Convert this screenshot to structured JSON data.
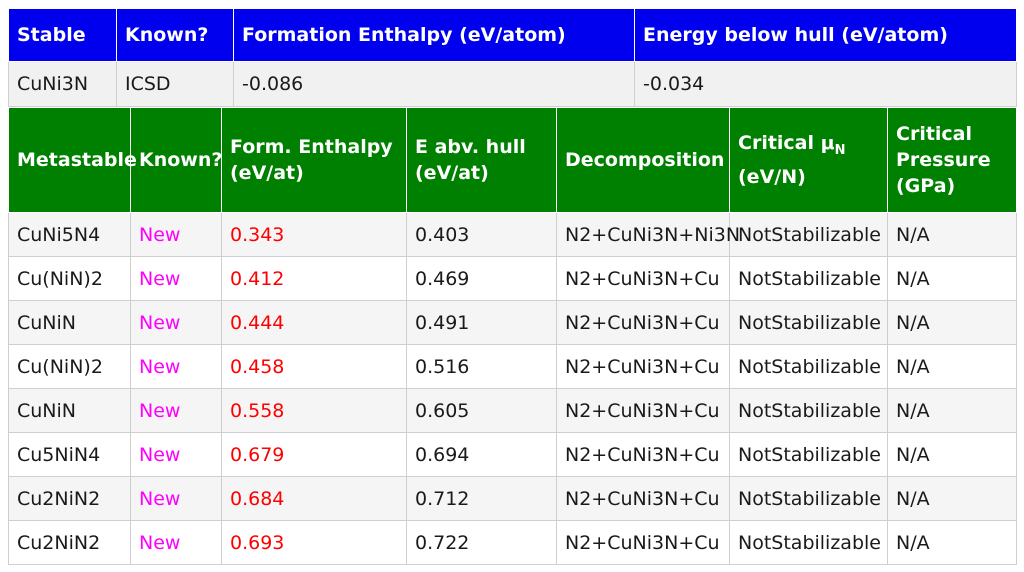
{
  "stable_table": {
    "headers": [
      "Stable",
      "Known?",
      "Formation Enthalpy (eV/atom)",
      "Energy below hull (eV/atom)"
    ],
    "row": {
      "formula": "CuNi3N",
      "known": "ICSD",
      "enthalpy": "-0.086",
      "hull": "-0.034"
    }
  },
  "metastable_table": {
    "headers": {
      "metastable": "Metastable",
      "known": "Known?",
      "form_enthalpy": "Form. Enthalpy (eV/at)",
      "e_abv_hull": "E abv. hull (eV/at)",
      "decomposition": "Decomposition",
      "critical_mu_prefix": "Critical μ",
      "critical_mu_sub": "N",
      "critical_mu_units": "(eV/N)",
      "critical_pressure": "Critical Pressure (GPa)"
    },
    "rows": [
      {
        "formula": "CuNi5N4",
        "known": "New",
        "enthalpy": "0.343",
        "hull": "0.403",
        "decomposition": "N2+CuNi3N+Ni3N",
        "mu": "NotStabilizable",
        "pressure": "N/A"
      },
      {
        "formula": "Cu(NiN)2",
        "known": "New",
        "enthalpy": "0.412",
        "hull": "0.469",
        "decomposition": "N2+CuNi3N+Cu",
        "mu": "NotStabilizable",
        "pressure": "N/A"
      },
      {
        "formula": "CuNiN",
        "known": "New",
        "enthalpy": "0.444",
        "hull": "0.491",
        "decomposition": "N2+CuNi3N+Cu",
        "mu": "NotStabilizable",
        "pressure": "N/A"
      },
      {
        "formula": "Cu(NiN)2",
        "known": "New",
        "enthalpy": "0.458",
        "hull": "0.516",
        "decomposition": "N2+CuNi3N+Cu",
        "mu": "NotStabilizable",
        "pressure": "N/A"
      },
      {
        "formula": "CuNiN",
        "known": "New",
        "enthalpy": "0.558",
        "hull": "0.605",
        "decomposition": "N2+CuNi3N+Cu",
        "mu": "NotStabilizable",
        "pressure": "N/A"
      },
      {
        "formula": "Cu5NiN4",
        "known": "New",
        "enthalpy": "0.679",
        "hull": "0.694",
        "decomposition": "N2+CuNi3N+Cu",
        "mu": "NotStabilizable",
        "pressure": "N/A"
      },
      {
        "formula": "Cu2NiN2",
        "known": "New",
        "enthalpy": "0.684",
        "hull": "0.712",
        "decomposition": "N2+CuNi3N+Cu",
        "mu": "NotStabilizable",
        "pressure": "N/A"
      },
      {
        "formula": "Cu2NiN2",
        "known": "New",
        "enthalpy": "0.693",
        "hull": "0.722",
        "decomposition": "N2+CuNi3N+Cu",
        "mu": "NotStabilizable",
        "pressure": "N/A"
      }
    ]
  },
  "colors": {
    "stable_header": "#0000ee",
    "metastable_header": "#008000",
    "new_label": "#ff00ff",
    "enthalpy_value": "#ff0000"
  }
}
